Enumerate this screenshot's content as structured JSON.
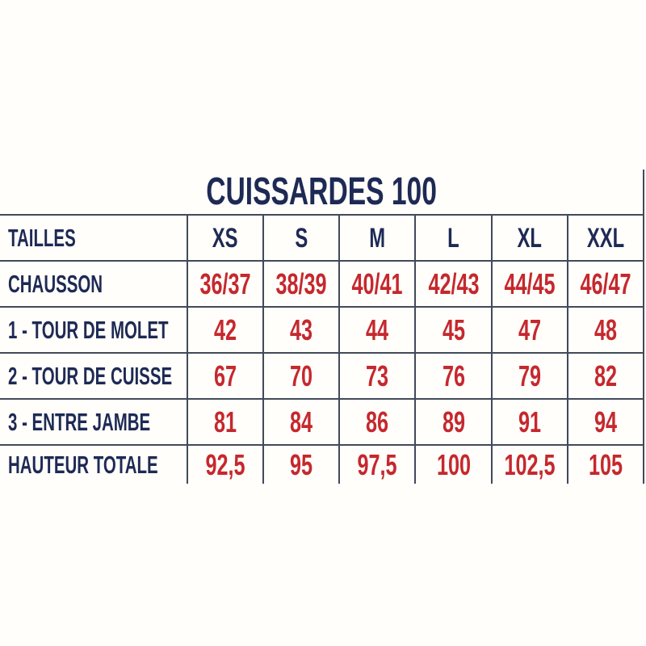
{
  "colors": {
    "navy_text": "#1e2a55",
    "red_values": "#c5282e",
    "grid_lines": "#414a5a",
    "background": "#fffefa"
  },
  "chart_data": {
    "type": "table",
    "title": "CUISSARDES 100",
    "columns": [
      "TAILLES",
      "XS",
      "S",
      "M",
      "L",
      "XL",
      "XXL"
    ],
    "rows": [
      {
        "label": "CHAUSSON",
        "values": [
          "36/37",
          "38/39",
          "40/41",
          "42/43",
          "44/45",
          "46/47"
        ]
      },
      {
        "label": "1 - TOUR DE MOLET",
        "values": [
          "42",
          "43",
          "44",
          "45",
          "47",
          "48"
        ]
      },
      {
        "label": "2 - TOUR DE CUISSE",
        "values": [
          "67",
          "70",
          "73",
          "76",
          "79",
          "82"
        ]
      },
      {
        "label": "3 - ENTRE JAMBE",
        "values": [
          "81",
          "84",
          "86",
          "89",
          "91",
          "94"
        ]
      },
      {
        "label": "HAUTEUR TOTALE",
        "values": [
          "92,5",
          "95",
          "97,5",
          "100",
          "102,5",
          "105"
        ]
      }
    ],
    "layout": {
      "grid": "on",
      "title_position": "top-center",
      "value_alignment": "center",
      "label_alignment": "left"
    }
  }
}
